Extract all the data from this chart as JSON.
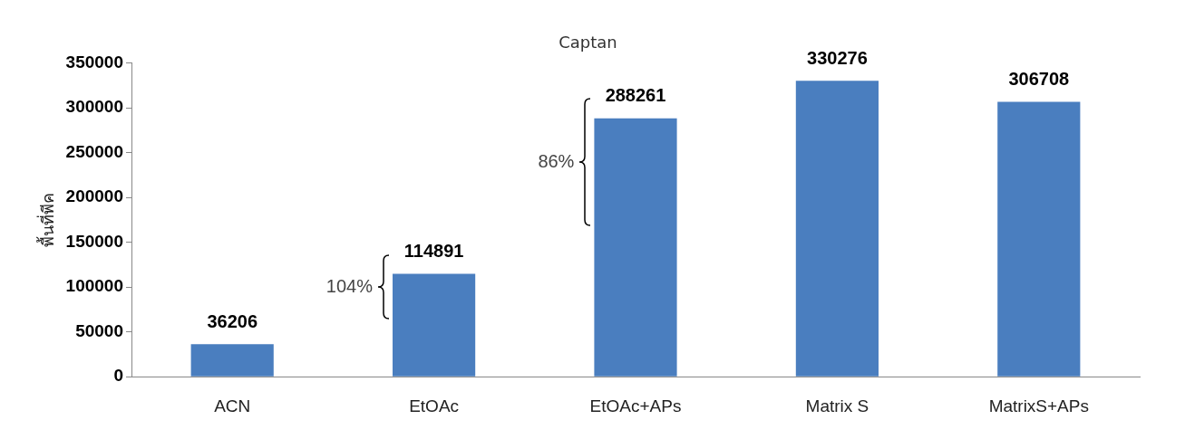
{
  "chart_data": {
    "type": "bar",
    "title": "Captan",
    "ylabel": "พื้นที่พีค",
    "categories": [
      "ACN",
      "EtOAc",
      "EtOAc+APs",
      "Matrix S",
      "MatrixS+APs"
    ],
    "values": [
      36206,
      114891,
      288261,
      330276,
      306708
    ],
    "color": "#4a7ebf",
    "ylim": [
      0,
      350000
    ],
    "yticks": [
      0,
      50000,
      100000,
      150000,
      200000,
      250000,
      300000,
      350000
    ],
    "data_labels": true,
    "grid": false,
    "legend": false,
    "annotations": [
      "104%",
      "86%"
    ]
  }
}
